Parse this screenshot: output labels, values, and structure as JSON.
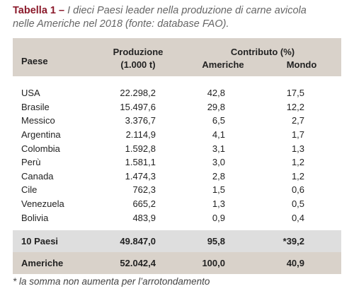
{
  "caption": {
    "label": "Tabella 1 –",
    "text": "I dieci Paesi leader nella produzione di carne avicola nelle Americhe nel 2018 (fonte: database FAO)."
  },
  "table": {
    "headers": {
      "paese": "Paese",
      "produzione": "Produzione",
      "unit": "(1.000 t)",
      "contributo": "Contributo (%)",
      "americhe": "Americhe",
      "mondo": "Mondo"
    },
    "rows": [
      [
        "USA",
        "22.298,2",
        "42,8",
        "17,5"
      ],
      [
        "Brasile",
        "15.497,6",
        "29,8",
        "12,2"
      ],
      [
        "Messico",
        "3.376,7",
        "6,5",
        "2,7"
      ],
      [
        "Argentina",
        "2.114,9",
        "4,1",
        "1,7"
      ],
      [
        "Colombia",
        "1.592,8",
        "3,1",
        "1,3"
      ],
      [
        "Perù",
        "1.581,1",
        "3,0",
        "1,2"
      ],
      [
        "Canada",
        "1.474,3",
        "2,8",
        "1,2"
      ],
      [
        "Cile",
        "762,3",
        "1,5",
        "0,6"
      ],
      [
        "Venezuela",
        "665,2",
        "1,3",
        "0,5"
      ],
      [
        "Bolivia",
        "483,9",
        "0,9",
        "0,4"
      ]
    ],
    "totals": [
      [
        "10 Paesi",
        "49.847,0",
        "95,8",
        "*39,2"
      ],
      [
        "Americhe",
        "52.042,4",
        "100,0",
        "40,9"
      ]
    ]
  },
  "footnote": "* la somma non aumenta per l’arrotondamento"
}
